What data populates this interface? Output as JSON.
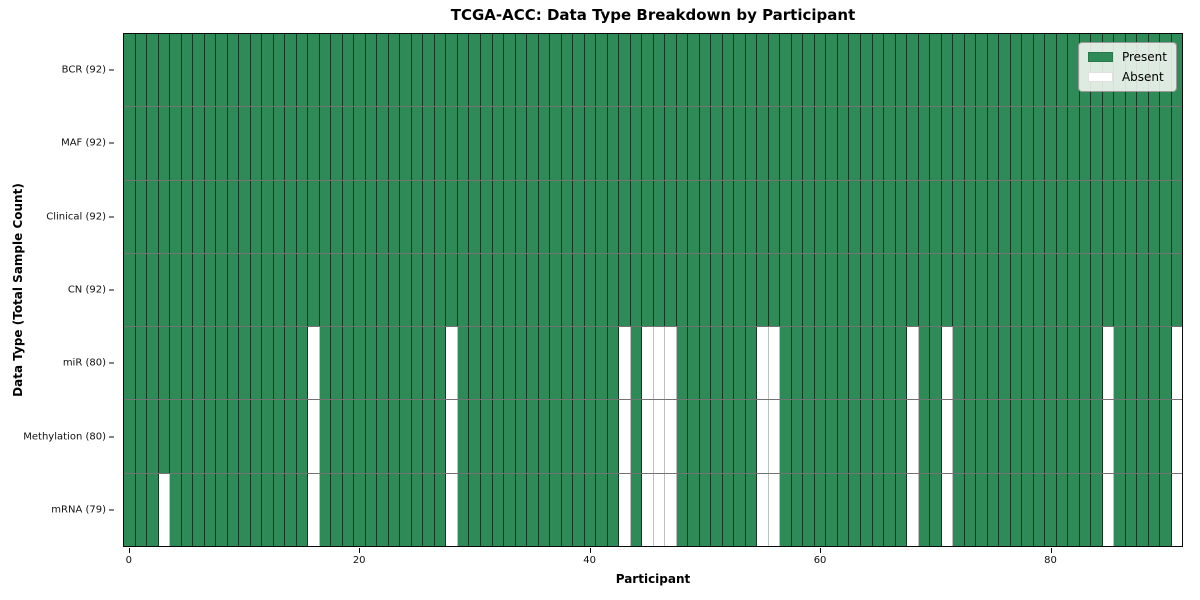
{
  "chart_data": {
    "type": "heatmap",
    "title": "TCGA-ACC: Data Type Breakdown by Participant",
    "xlabel": "Participant",
    "ylabel": "Data Type (Total Sample Count)",
    "n_participants": 92,
    "x_ticks": [
      0,
      20,
      40,
      60,
      80
    ],
    "colors": {
      "present": "#2e8b57",
      "absent": "#ffffff"
    },
    "legend": {
      "position": "upper right",
      "entries": [
        {
          "label": "Present",
          "color": "#2e8b57"
        },
        {
          "label": "Absent",
          "color": "#ffffff"
        }
      ]
    },
    "rows": [
      {
        "label": "BCR (92)",
        "present_count": 92,
        "absent_participants": []
      },
      {
        "label": "MAF (92)",
        "present_count": 92,
        "absent_participants": []
      },
      {
        "label": "Clinical (92)",
        "present_count": 92,
        "absent_participants": []
      },
      {
        "label": "CN (92)",
        "present_count": 92,
        "absent_participants": []
      },
      {
        "label": "miR (80)",
        "present_count": 80,
        "absent_participants": [
          16,
          28,
          43,
          45,
          46,
          47,
          55,
          56,
          68,
          71,
          85,
          91
        ]
      },
      {
        "label": "Methylation (80)",
        "present_count": 80,
        "absent_participants": [
          16,
          28,
          43,
          45,
          46,
          47,
          55,
          56,
          68,
          71,
          85,
          91
        ]
      },
      {
        "label": "mRNA (79)",
        "present_count": 79,
        "absent_participants": [
          3,
          16,
          28,
          43,
          45,
          46,
          47,
          55,
          56,
          68,
          71,
          85,
          91
        ]
      }
    ]
  }
}
